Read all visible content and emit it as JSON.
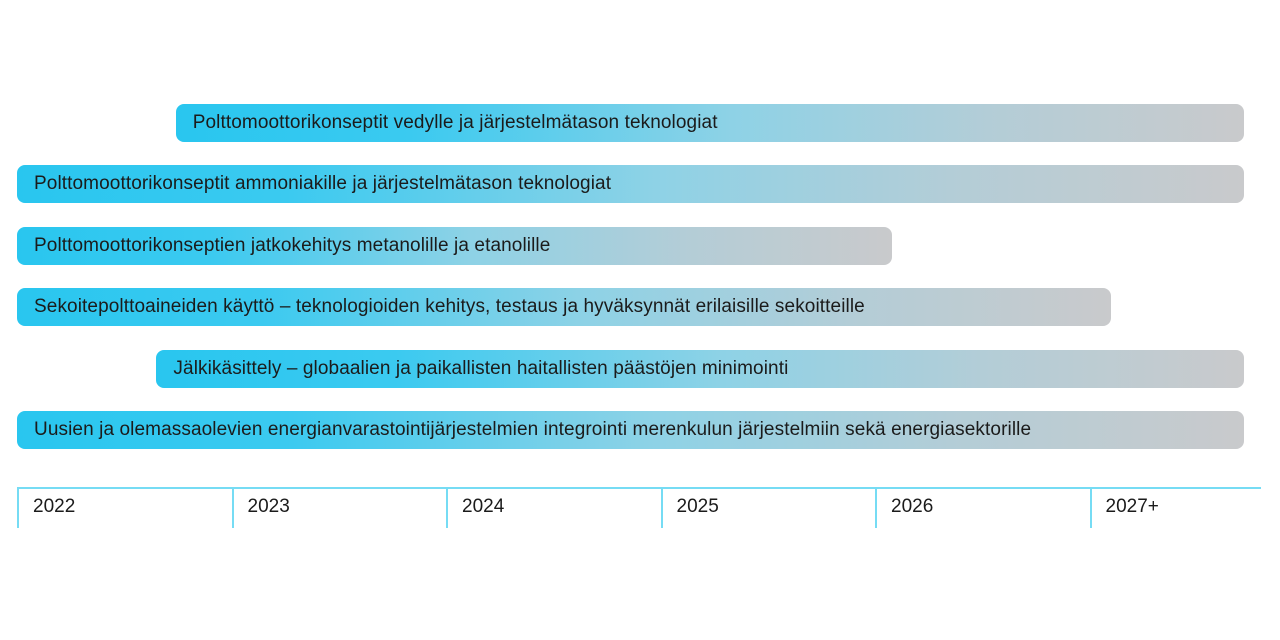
{
  "page": {
    "background": "#ffffff"
  },
  "chart_data": {
    "type": "bar",
    "subtype": "gantt-roadmap-timeline",
    "title": "",
    "legend": "none",
    "grid": false,
    "x_axis": {
      "position": "bottom",
      "range": [
        2022,
        2027.8
      ],
      "tick_years": [
        2022,
        2023,
        2024,
        2025,
        2026,
        2027
      ],
      "tick_labels": [
        "2022",
        "2023",
        "2024",
        "2025",
        "2026",
        "2027+"
      ]
    },
    "tasks": [
      {
        "label": "Polttomoottorikonseptit vedylle ja järjestelmätason teknologiat",
        "start": 2022.74,
        "end": 2027.72
      },
      {
        "label": "Polttomoottorikonseptit ammoniakille ja järjestelmätason teknologiat",
        "start": 2022.0,
        "end": 2027.72
      },
      {
        "label": "Polttomoottorikonseptien jatkokehitys metanolille ja etanolille",
        "start": 2022.0,
        "end": 2026.08
      },
      {
        "label": "Sekoitepolttoaineiden käyttö – teknologioiden kehitys, testaus ja hyväksynnät erilaisille sekoitteille",
        "start": 2022.0,
        "end": 2027.1
      },
      {
        "label": "Jälkikäsittely – globaalien ja paikallisten haitallisten päästöjen minimointi",
        "start": 2022.65,
        "end": 2027.72
      },
      {
        "label": "Uusien ja olemassaolevien energianvarastointijärjestelmien integrointi merenkulun järjestelmiin sekä energiasektorille",
        "start": 2022.0,
        "end": 2027.72
      }
    ],
    "colors": {
      "bar_gradient_start": "#29c6ef",
      "bar_gradient_mid": "#8ed2e6",
      "bar_gradient_end": "#c9cacc",
      "axis_line": "#76dcf4",
      "text": "#1b1b1b",
      "background": "#ffffff"
    }
  }
}
